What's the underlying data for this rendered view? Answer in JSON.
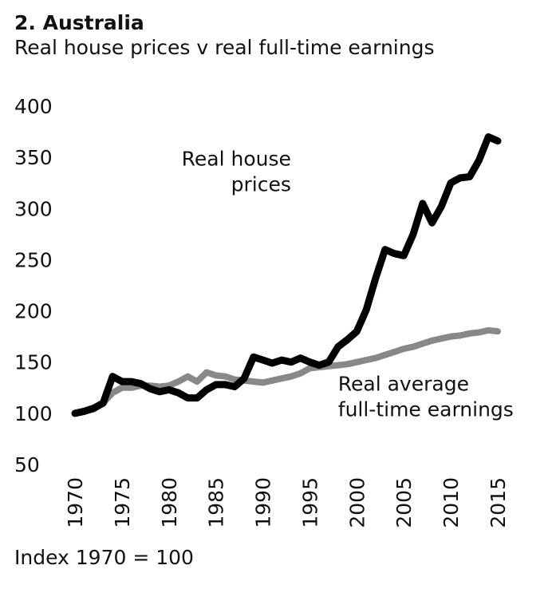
{
  "chart_data": {
    "type": "line",
    "title": "2. Australia",
    "subtitle": "Real house prices v real full-time earnings",
    "footnote": "Index 1970 = 100",
    "xlim": [
      1970,
      2015
    ],
    "ylim": [
      50,
      400
    ],
    "yticks": [
      "400",
      "350",
      "300",
      "250",
      "200",
      "150",
      "100",
      "50"
    ],
    "xticks": [
      "1970",
      "1975",
      "1980",
      "1985",
      "1990",
      "1995",
      "2000",
      "2005",
      "2010",
      "2015"
    ],
    "grid": false,
    "legend": "none",
    "series": [
      {
        "label": "Real house prices",
        "color": "#000000",
        "x": [
          1970,
          1971,
          1972,
          1973,
          1974,
          1975,
          1976,
          1977,
          1978,
          1979,
          1980,
          1981,
          1982,
          1983,
          1984,
          1985,
          1986,
          1987,
          1988,
          1989,
          1990,
          1991,
          1992,
          1993,
          1994,
          1995,
          1996,
          1997,
          1998,
          1999,
          2000,
          2001,
          2002,
          2003,
          2004,
          2005,
          2006,
          2007,
          2008,
          2009,
          2010,
          2011,
          2012,
          2013,
          2014,
          2015
        ],
        "y": [
          100,
          102,
          105,
          110,
          136,
          131,
          131,
          129,
          124,
          121,
          123,
          120,
          115,
          115,
          123,
          128,
          128,
          126,
          134,
          155,
          152,
          149,
          152,
          150,
          154,
          150,
          147,
          150,
          165,
          172,
          180,
          201,
          232,
          260,
          256,
          254,
          275,
          305,
          286,
          302,
          325,
          330,
          331,
          347,
          370,
          366
        ]
      },
      {
        "label": "Real average full-time earnings",
        "color": "#888888",
        "x": [
          1970,
          1971,
          1972,
          1973,
          1974,
          1975,
          1976,
          1977,
          1978,
          1979,
          1980,
          1981,
          1982,
          1983,
          1984,
          1985,
          1986,
          1987,
          1988,
          1989,
          1990,
          1991,
          1992,
          1993,
          1994,
          1995,
          1996,
          1997,
          1998,
          1999,
          2000,
          2001,
          2002,
          2003,
          2004,
          2005,
          2006,
          2007,
          2008,
          2009,
          2010,
          2011,
          2012,
          2013,
          2014,
          2015
        ],
        "y": [
          100,
          102,
          104,
          110,
          120,
          125,
          125,
          127,
          127,
          126,
          127,
          131,
          136,
          131,
          140,
          137,
          136,
          133,
          132,
          131,
          130,
          132,
          134,
          136,
          139,
          144,
          145,
          146,
          147,
          148,
          150,
          152,
          154,
          157,
          160,
          163,
          165,
          168,
          171,
          173,
          175,
          176,
          178,
          179,
          181,
          180
        ]
      }
    ],
    "annotations": [
      {
        "lines": [
          "Real house",
          "prices"
        ],
        "anchor": "end",
        "x": 1993,
        "y": 342
      },
      {
        "lines": [
          "Real average",
          "full-time earnings"
        ],
        "anchor": "start",
        "x": 1998,
        "y": 122
      }
    ]
  }
}
